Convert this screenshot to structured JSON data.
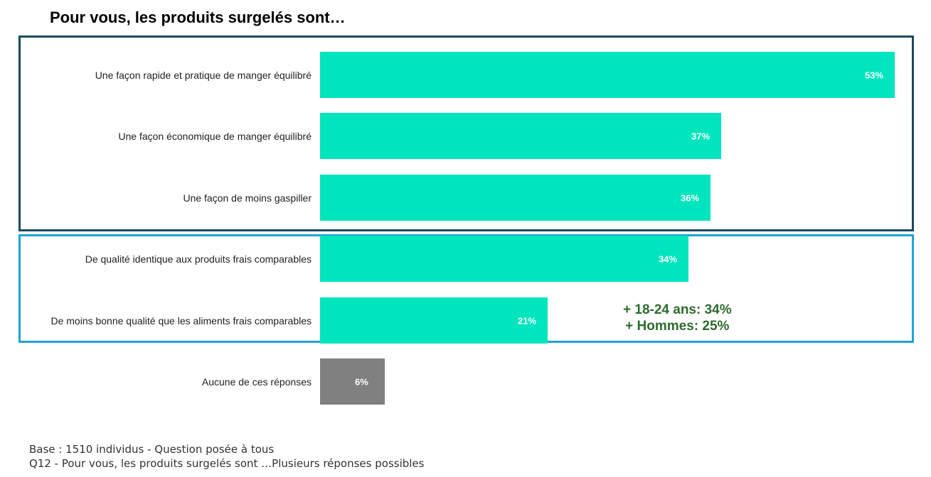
{
  "chart_data": {
    "type": "bar",
    "orientation": "horizontal",
    "title": "Pour vous, les produits surgelés sont…",
    "categories": [
      "Une façon rapide et pratique de manger équilibré",
      "Une façon économique de manger équilibré",
      "Une façon de moins gaspiller",
      "De qualité identique aux produits frais comparables",
      "De moins bonne qualité que les aliments frais comparables",
      "Aucune de ces réponses"
    ],
    "values": [
      53,
      37,
      36,
      34,
      21,
      6
    ],
    "value_labels": [
      "53%",
      "37%",
      "36%",
      "34%",
      "21%",
      "6%"
    ],
    "bar_colors": [
      "#00e5bd",
      "#00e5bd",
      "#00e5bd",
      "#00e5bd",
      "#00e5bd",
      "#808080"
    ],
    "xlim": [
      0,
      53
    ],
    "annotation": [
      "+ 18-24 ans: 34%",
      "+ Hommes: 25%"
    ],
    "annotation_color": "#2e6b2e",
    "group_box_colors": [
      "#1b4a5e",
      "#1fa3d4"
    ]
  },
  "footer": {
    "base": "Base : 1510 individus - Question posée à tous",
    "question": "Q12 - Pour vous, les produits surgelés sont …Plusieurs réponses possibles"
  }
}
